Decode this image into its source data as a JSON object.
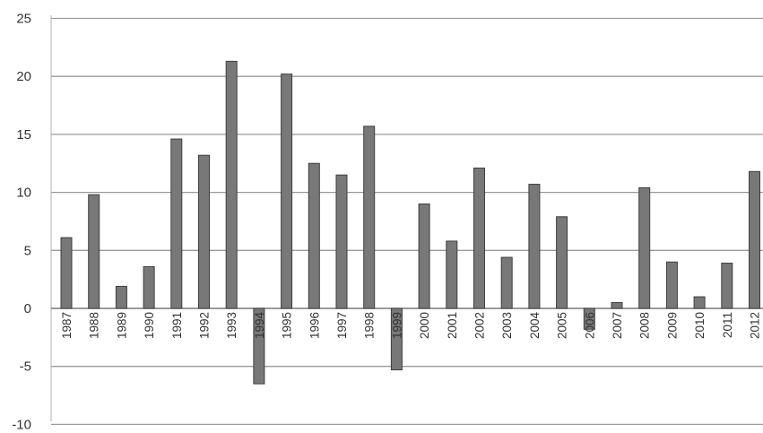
{
  "chart_data": {
    "type": "bar",
    "categories": [
      "1987",
      "1988",
      "1989",
      "1990",
      "1991",
      "1992",
      "1993",
      "1994",
      "1995",
      "1996",
      "1997",
      "1998",
      "1999",
      "2000",
      "2001",
      "2002",
      "2003",
      "2004",
      "2005",
      "2006",
      "2007",
      "2008",
      "2009",
      "2010",
      "2011",
      "2012"
    ],
    "values": [
      6.1,
      9.8,
      1.9,
      3.6,
      14.6,
      13.2,
      21.3,
      -6.5,
      20.2,
      12.5,
      11.5,
      15.7,
      -5.3,
      9.0,
      5.8,
      12.1,
      4.4,
      10.7,
      7.9,
      -1.8,
      0.5,
      10.4,
      4.0,
      1.0,
      3.9,
      11.8
    ],
    "y_ticks": [
      "-10",
      "-5",
      "0",
      "5",
      "10",
      "15",
      "20",
      "25"
    ],
    "ylim": [
      -10,
      25
    ],
    "title": "",
    "xlabel": "",
    "ylabel": "",
    "grid": true,
    "legend": "none",
    "colors": {
      "bar_fill": "#787878",
      "bar_stroke": "#3e3e3e",
      "grid": "#9a9a9a"
    }
  }
}
